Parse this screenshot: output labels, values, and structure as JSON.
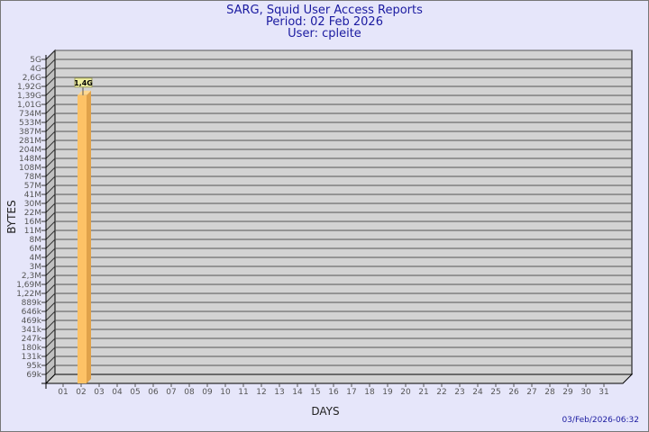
{
  "header": {
    "title": "SARG, Squid User Access Reports",
    "period": "Period: 02 Feb 2026",
    "user": "User: cpleite"
  },
  "footer": {
    "timestamp": "03/Feb/2026-06:32"
  },
  "colors": {
    "background": "#e6e6fa",
    "plot": "#d3d3d3",
    "bar_front": "#fdc266",
    "bar_side": "#e0a24a",
    "title": "#1a1aa0"
  },
  "chart_data": {
    "type": "bar",
    "xlabel": "DAYS",
    "ylabel": "BYTES",
    "yscale": "log",
    "y_ticks": [
      "5G",
      "4G",
      "2,6G",
      "1,92G",
      "1,39G",
      "1,01G",
      "734M",
      "533M",
      "387M",
      "281M",
      "204M",
      "148M",
      "108M",
      "78M",
      "57M",
      "41M",
      "30M",
      "22M",
      "16M",
      "11M",
      "8M",
      "6M",
      "4M",
      "3M",
      "2,3M",
      "1,69M",
      "1,22M",
      "889k",
      "646k",
      "469k",
      "341k",
      "247k",
      "180k",
      "131k",
      "95k",
      "69k"
    ],
    "y_tick_values": [
      5000000000.0,
      4000000000.0,
      2600000000.0,
      1920000000.0,
      1390000000.0,
      1010000000.0,
      734000000.0,
      533000000.0,
      387000000.0,
      281000000.0,
      204000000.0,
      148000000.0,
      108000000.0,
      78000000.0,
      57000000.0,
      41000000.0,
      30000000.0,
      22000000.0,
      16000000.0,
      11000000.0,
      8000000.0,
      6000000.0,
      4000000.0,
      3000000.0,
      2300000.0,
      1690000.0,
      1220000.0,
      889000.0,
      646000.0,
      469000.0,
      341000.0,
      247000.0,
      180000.0,
      131000.0,
      95000.0,
      69000.0
    ],
    "categories": [
      "01",
      "02",
      "03",
      "04",
      "05",
      "06",
      "07",
      "08",
      "09",
      "10",
      "11",
      "12",
      "13",
      "14",
      "15",
      "16",
      "17",
      "18",
      "19",
      "20",
      "21",
      "22",
      "23",
      "24",
      "25",
      "26",
      "27",
      "28",
      "29",
      "30",
      "31"
    ],
    "values": [
      0,
      1400000000.0,
      0,
      0,
      0,
      0,
      0,
      0,
      0,
      0,
      0,
      0,
      0,
      0,
      0,
      0,
      0,
      0,
      0,
      0,
      0,
      0,
      0,
      0,
      0,
      0,
      0,
      0,
      0,
      0,
      0
    ],
    "data_labels": {
      "02": "1,4G"
    },
    "grid": true
  }
}
